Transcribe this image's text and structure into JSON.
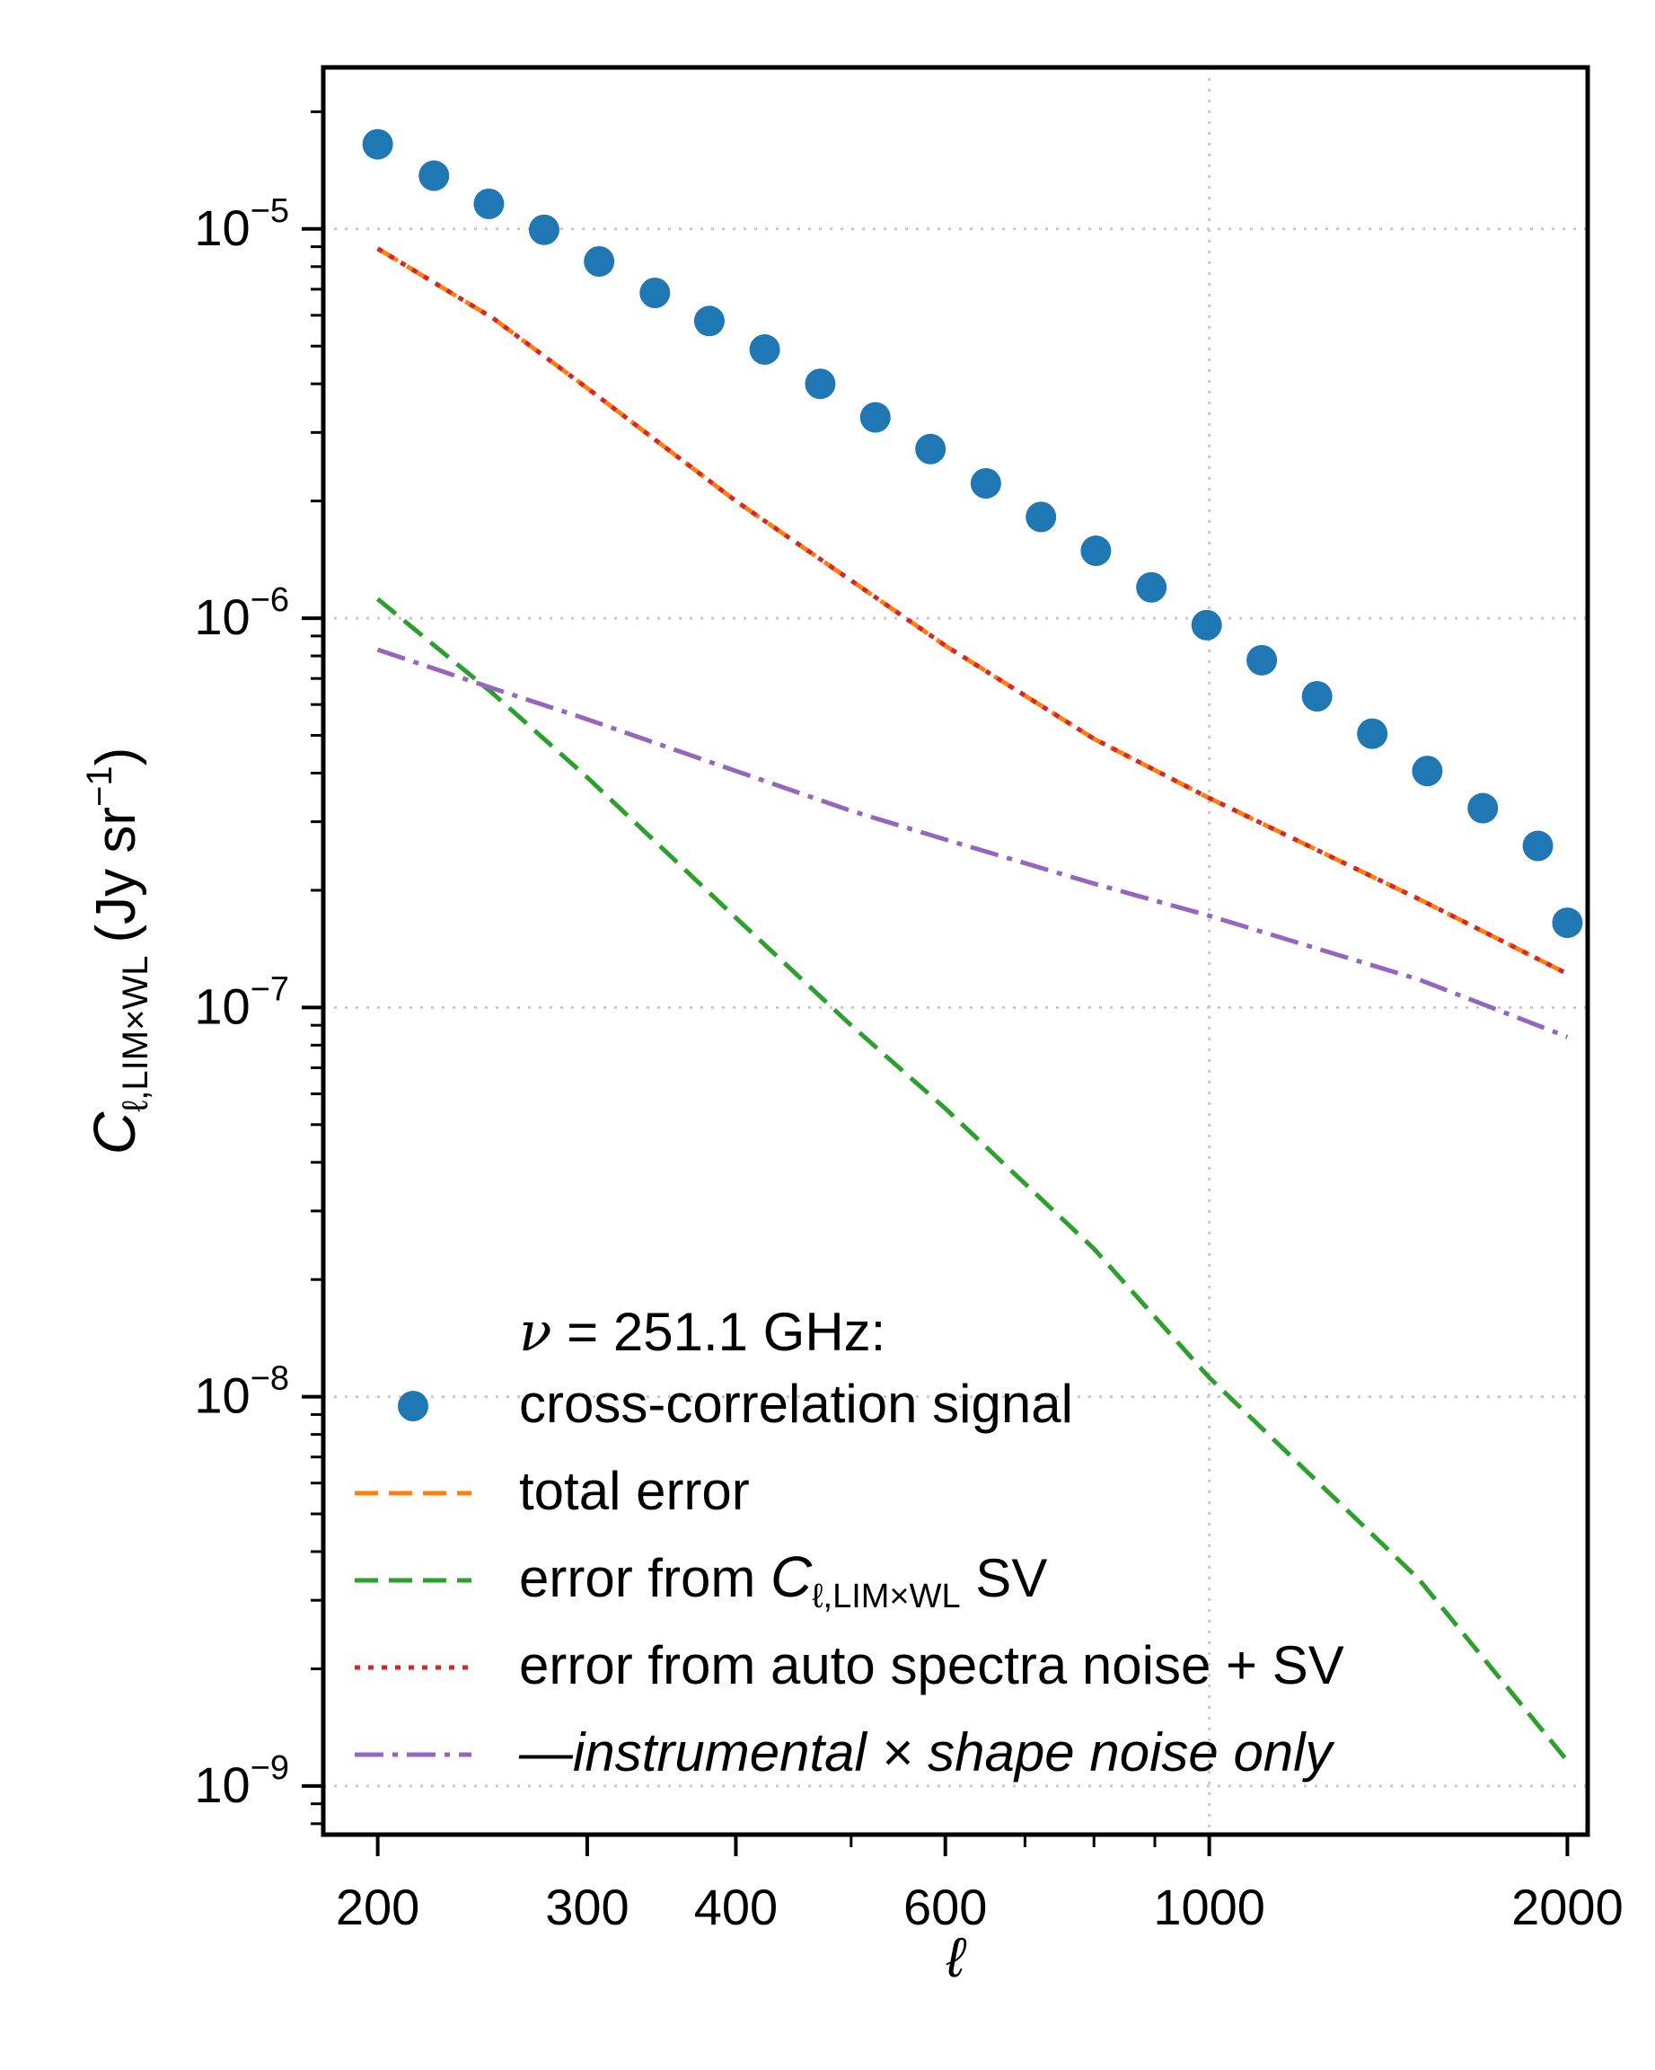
{
  "chart_data": {
    "type": "scatter",
    "xscale": "log",
    "yscale": "log",
    "xlim": [
      180,
      2080
    ],
    "ylim": [
      7.5e-10,
      2.6e-05
    ],
    "xticks": [
      {
        "value": 200,
        "label": "200"
      },
      {
        "value": 300,
        "label": "300"
      },
      {
        "value": 400,
        "label": "400"
      },
      {
        "value": 600,
        "label": "600"
      },
      {
        "value": 1000,
        "label": "1000"
      },
      {
        "value": 2000,
        "label": "2000"
      }
    ],
    "yticks": [
      {
        "value": 1e-05,
        "base": "10",
        "exp": "−5"
      },
      {
        "value": 1e-06,
        "base": "10",
        "exp": "−6"
      },
      {
        "value": 1e-07,
        "base": "10",
        "exp": "−7"
      },
      {
        "value": 1e-08,
        "base": "10",
        "exp": "−8"
      },
      {
        "value": 1e-09,
        "base": "10",
        "exp": "−9"
      }
    ],
    "xlabel": "ℓ",
    "ylabel": {
      "symbol": "C",
      "sub": "ℓ,LIM×WL",
      "units": "(Jy sr",
      "units_exp": "−1",
      "units_close": ")"
    },
    "grid": "dotted, major ticks",
    "legend": {
      "placement": "lower-left",
      "title": {
        "symbol": "ν",
        "text": " = 251.1 GHz:"
      }
    },
    "series": [
      {
        "name": "cross-correlation signal",
        "style": "markers",
        "color": "#1f77b4",
        "x": [
          200,
          223,
          248,
          276,
          307,
          342,
          380,
          423,
          471,
          524,
          583,
          649,
          722,
          803,
          894,
          995,
          1107,
          1232,
          1371,
          1525,
          1698,
          1889,
          2000
        ],
        "y": [
          1.65e-05,
          1.37e-05,
          1.16e-05,
          9.95e-06,
          8.25e-06,
          6.85e-06,
          5.8e-06,
          4.9e-06,
          4e-06,
          3.28e-06,
          2.72e-06,
          2.22e-06,
          1.82e-06,
          1.49e-06,
          1.2e-06,
          9.6e-07,
          7.8e-07,
          6.3e-07,
          5.05e-07,
          4.05e-07,
          3.25e-07,
          2.6e-07,
          1.65e-07
        ]
      },
      {
        "name": "total error",
        "style": "dashed",
        "color": "#ff7f0e",
        "x": [
          200,
          250,
          300,
          400,
          500,
          600,
          800,
          1000,
          1500,
          2000
        ],
        "y": [
          8.9e-06,
          5.9e-06,
          3.9e-06,
          2e-06,
          1.25e-06,
          8.5e-07,
          4.9e-07,
          3.45e-07,
          1.9e-07,
          1.22e-07
        ]
      },
      {
        "name": "error from C_{ℓ,LIM×WL} SV",
        "legend_label": {
          "prefix": "error from ",
          "symbol": "C",
          "sub": "ℓ,LIM×WL",
          "suffix": " SV"
        },
        "style": "dashed",
        "color": "#2ca02c",
        "x": [
          200,
          250,
          300,
          400,
          500,
          600,
          800,
          1000,
          1500,
          2000
        ],
        "y": [
          1.12e-06,
          6.4e-07,
          3.9e-07,
          1.7e-07,
          9e-08,
          5.5e-08,
          2.4e-08,
          1.12e-08,
          3.4e-09,
          1.16e-09
        ]
      },
      {
        "name": "error from auto spectra noise + SV",
        "style": "dotted",
        "color": "#d62728",
        "x": [
          200,
          250,
          300,
          400,
          500,
          600,
          800,
          1000,
          1500,
          2000
        ],
        "y": [
          8.9e-06,
          5.9e-06,
          3.9e-06,
          2e-06,
          1.25e-06,
          8.5e-07,
          4.9e-07,
          3.45e-07,
          1.9e-07,
          1.22e-07
        ]
      },
      {
        "name": "—instrumental × shape noise only",
        "style": "dashdot",
        "color": "#9467bd",
        "x": [
          200,
          250,
          300,
          400,
          500,
          600,
          800,
          1000,
          1500,
          2000
        ],
        "y": [
          8.3e-07,
          6.6e-07,
          5.5e-07,
          4.05e-07,
          3.2e-07,
          2.7e-07,
          2.08e-07,
          1.72e-07,
          1.18e-07,
          8.4e-08
        ]
      }
    ]
  }
}
